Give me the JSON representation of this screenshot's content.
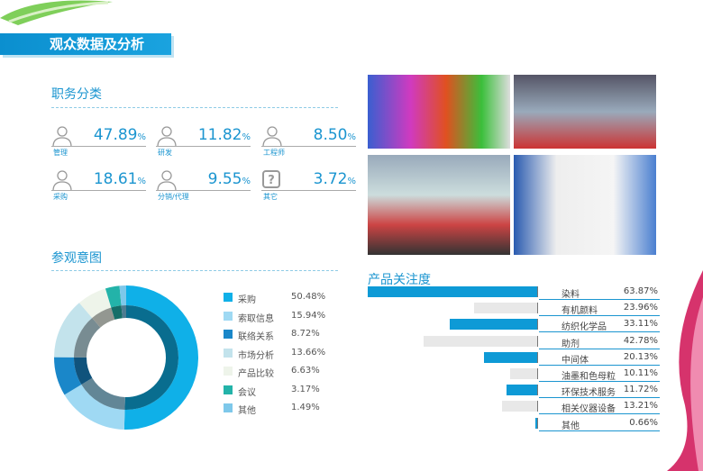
{
  "header": {
    "title": "观众数据及分析"
  },
  "jobs": {
    "title": "职务分类",
    "items": [
      {
        "label": "管理",
        "value": "47.89",
        "icon": "manager-icon"
      },
      {
        "label": "研发",
        "value": "11.82",
        "icon": "researcher-icon"
      },
      {
        "label": "工程师",
        "value": "8.50",
        "icon": "engineer-icon"
      },
      {
        "label": "采购",
        "value": "18.61",
        "icon": "buyer-icon"
      },
      {
        "label": "分销/代理",
        "value": "9.55",
        "icon": "distributor-icon"
      },
      {
        "label": "其它",
        "value": "3.72",
        "icon": "question-icon"
      }
    ],
    "unit": "%"
  },
  "chart_data": [
    {
      "type": "pie",
      "title": "参观意图",
      "donut": true,
      "categories": [
        "采购",
        "索取信息",
        "联络关系",
        "市场分析",
        "产品比较",
        "会议",
        "其他"
      ],
      "values": [
        50.48,
        15.94,
        8.72,
        13.66,
        6.63,
        3.17,
        1.49
      ],
      "labels": [
        "50.48%",
        "15.94%",
        "8.72%",
        "13.66%",
        "6.63%",
        "3.17%",
        "1.49%"
      ],
      "colors": [
        "#0fb0e8",
        "#9fd9f3",
        "#1a87c9",
        "#c3e3ec",
        "#eef4ea",
        "#23b3a9",
        "#7ec8ea"
      ],
      "legend": "right"
    },
    {
      "type": "bar",
      "orientation": "horizontal",
      "title": "产品关注度",
      "categories": [
        "染料",
        "有机颜料",
        "纺织化学品",
        "助剂",
        "中间体",
        "油墨和色母粒",
        "环保技术服务",
        "相关仪器设备",
        "其他"
      ],
      "values": [
        63.87,
        23.96,
        33.11,
        42.78,
        20.13,
        10.11,
        11.72,
        13.21,
        0.66
      ],
      "labels": [
        "63.87%",
        "23.96%",
        "33.11%",
        "42.78%",
        "20.13%",
        "10.11%",
        "11.72%",
        "13.21%",
        "0.66%"
      ],
      "colors": [
        "#0e9ad6",
        "#e8e8e8"
      ]
    }
  ],
  "photos": [
    "colorful-bottles-photo",
    "exhibition-machine-photo",
    "glass-bottles-photo",
    "lab-equipment-photo"
  ]
}
